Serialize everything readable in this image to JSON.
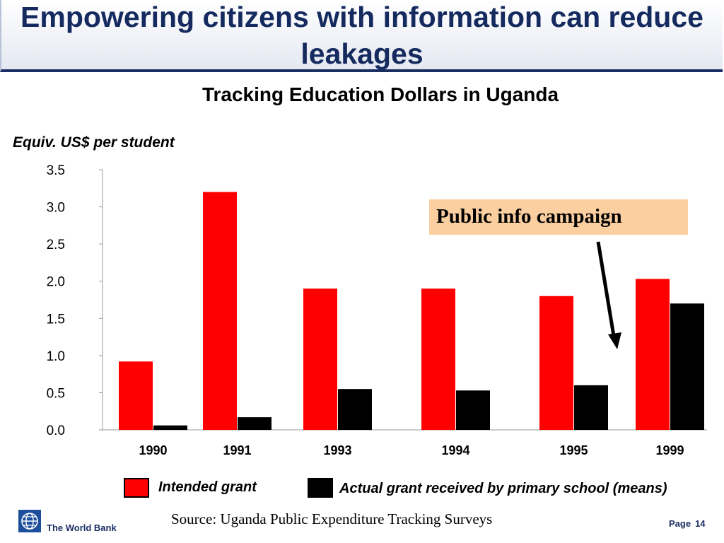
{
  "slide": {
    "title": "Empowering citizens with information can reduce leakages",
    "subtitle": "Tracking Education Dollars in Uganda",
    "source": "Source: Uganda Public Expenditure Tracking Surveys",
    "organization": "The World Bank",
    "page_label": "Page",
    "page_number": "14",
    "callout": "Public info campaign"
  },
  "chart_data": {
    "type": "bar",
    "title": "Tracking Education Dollars in Uganda",
    "ylabel": "Equiv. US$ per student",
    "xlabel": "",
    "categories": [
      "1990",
      "1991",
      "1993",
      "1994",
      "1995",
      "1999"
    ],
    "series": [
      {
        "name": "Intended grant",
        "color": "#ff0000",
        "values": [
          0.92,
          3.2,
          1.9,
          1.9,
          1.8,
          2.03
        ]
      },
      {
        "name": "Actual grant received by primary school (means)",
        "color": "#000000",
        "values": [
          0.06,
          0.17,
          0.55,
          0.53,
          0.6,
          1.7
        ]
      }
    ],
    "ylim": [
      0,
      3.5
    ],
    "yticks": [
      "0.0",
      "0.5",
      "1.0",
      "1.5",
      "2.0",
      "2.5",
      "3.0",
      "3.5"
    ],
    "grid": false,
    "legend": "bottom",
    "annotation": {
      "text": "Public info campaign",
      "points_to": "1999"
    }
  }
}
